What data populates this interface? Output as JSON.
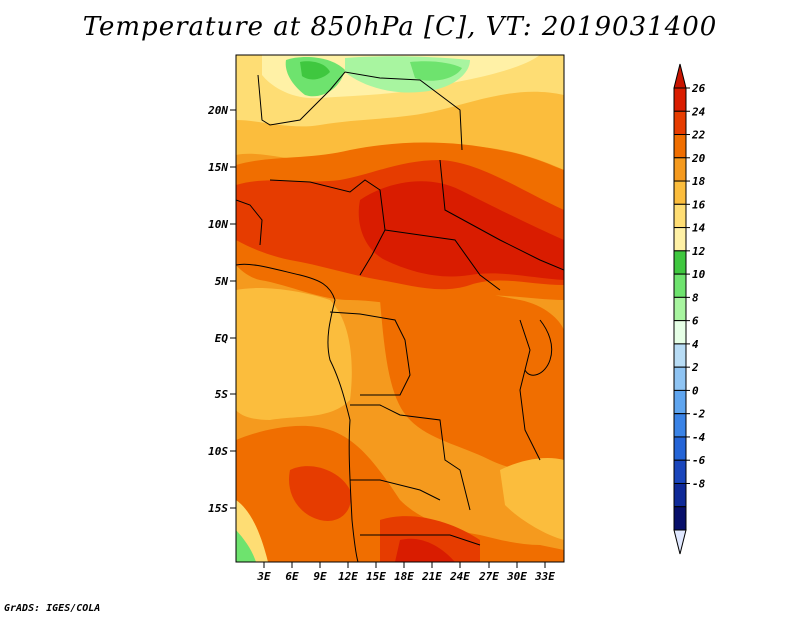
{
  "title": "Temperature at 850hPa [C], VT: 2019031400",
  "credit": "GrADS: IGES/COLA",
  "map": {
    "variable": "Temperature at 850hPa",
    "units": "C",
    "valid_time": "2019031400",
    "projection": "latlon",
    "lon_range": [
      0,
      35
    ],
    "lat_range": [
      -20,
      25
    ],
    "lon_ticks": [
      "3E",
      "6E",
      "9E",
      "12E",
      "15E",
      "18E",
      "21E",
      "24E",
      "27E",
      "30E",
      "33E"
    ],
    "lat_ticks": [
      "20N",
      "15N",
      "10N",
      "5N",
      "EQ",
      "5S",
      "10S",
      "15S"
    ]
  },
  "colorbar": {
    "labels": [
      "26",
      "24",
      "22",
      "20",
      "18",
      "16",
      "14",
      "12",
      "10",
      "8",
      "6",
      "4",
      "2",
      "0",
      "-2",
      "-4",
      "-6",
      "-8"
    ],
    "colors": [
      "#d91c00",
      "#e63c00",
      "#f06e00",
      "#f59a1e",
      "#fbbd3d",
      "#fedd74",
      "#fff1a6",
      "#3fc73f",
      "#6ee36e",
      "#a8f5a0",
      "#e6ffe6",
      "#b8dcf5",
      "#8fc4f3",
      "#5fa5ef",
      "#3a83e6",
      "#2464d6",
      "#1a46bc",
      "#0f2a98",
      "#070f6a"
    ],
    "top_arrow_color": "#c81400",
    "bottom_arrow_color": "#e0e8ff"
  }
}
